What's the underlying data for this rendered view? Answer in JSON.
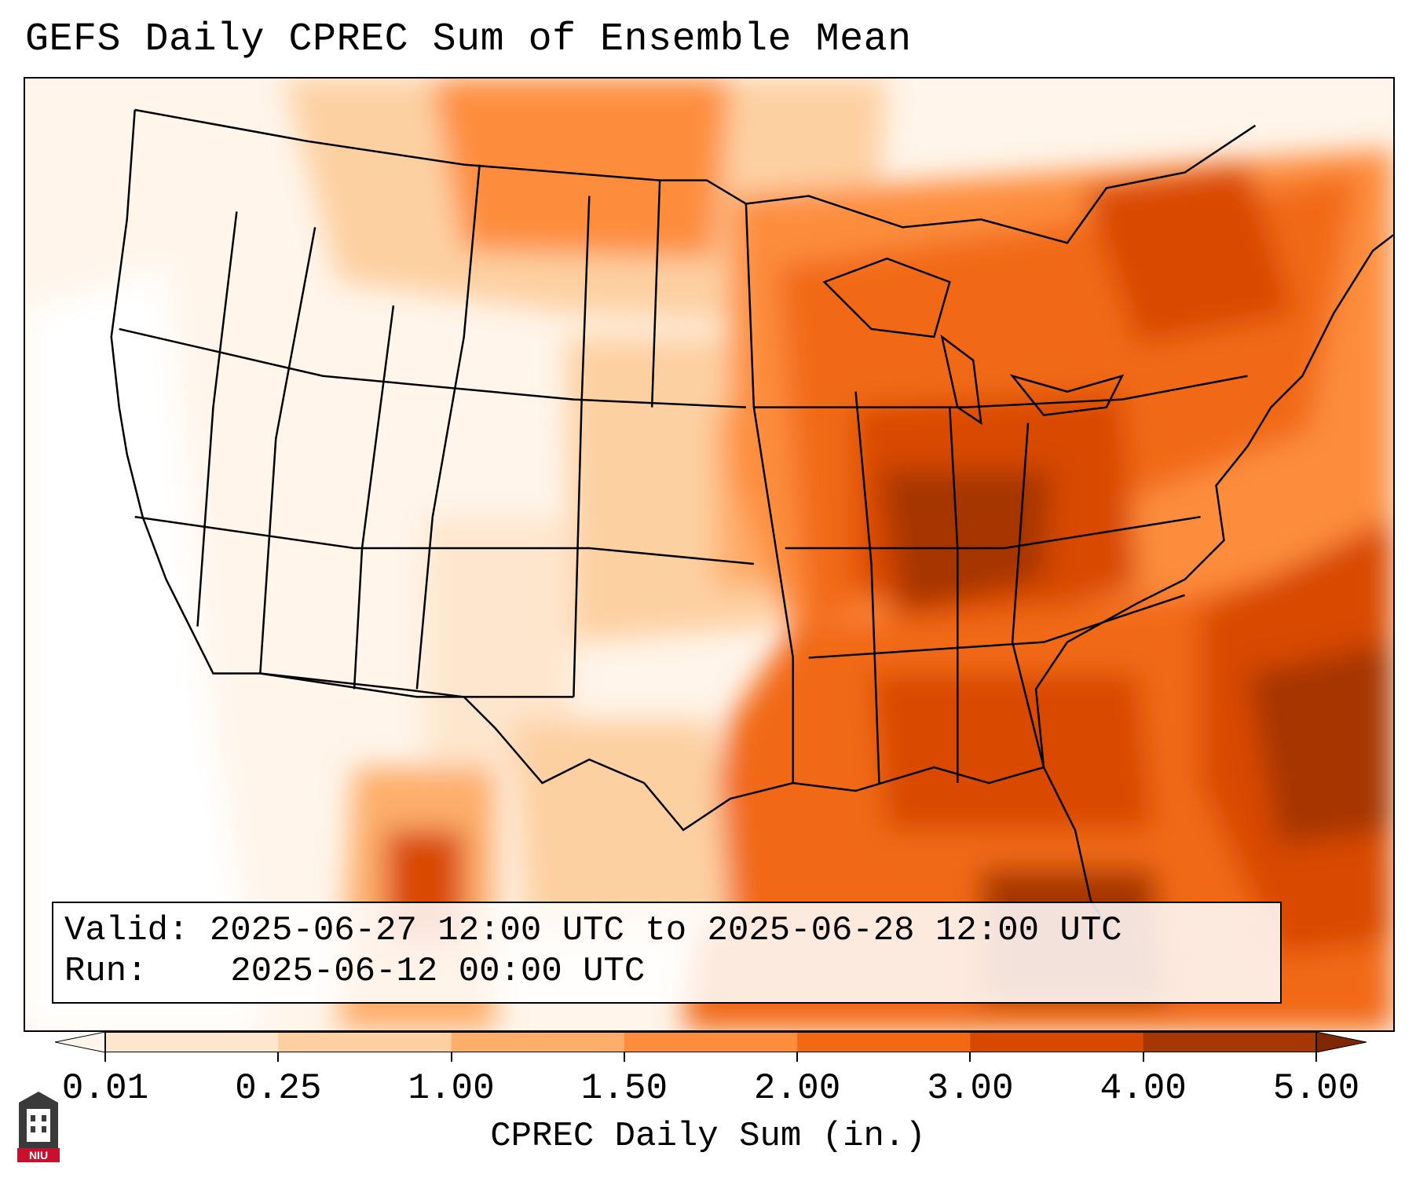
{
  "title": "GEFS Daily CPREC Sum of Ensemble Mean",
  "info": {
    "valid_label": "Valid:",
    "valid_value": "2025-06-27 12:00 UTC to 2025-06-28 12:00 UTC",
    "run_label": "Run:",
    "run_value": "2025-06-12 00:00 UTC"
  },
  "colorbar": {
    "label": "CPREC Daily Sum (in.)",
    "ticks": [
      "0.01",
      "0.25",
      "1.00",
      "1.50",
      "2.00",
      "3.00",
      "4.00",
      "5.00"
    ],
    "colors": [
      "#fff5eb",
      "#fee6ce",
      "#fdd0a2",
      "#fdae6b",
      "#fd8d3c",
      "#f16913",
      "#d94801",
      "#a63603",
      "#7f2704"
    ],
    "extend": "both"
  },
  "logo": {
    "text": "NIU",
    "color": "#c8102e"
  }
}
